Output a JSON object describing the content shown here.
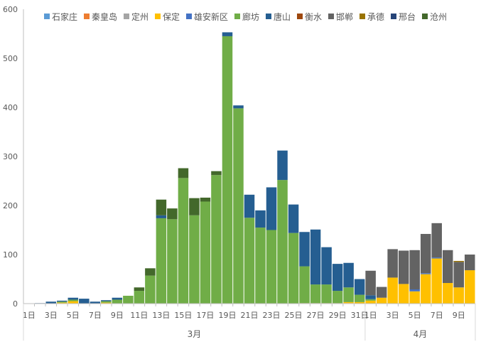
{
  "chart_data": {
    "type": "bar",
    "stacked": true,
    "title": "",
    "xlabel": "",
    "ylabel": "",
    "ylim": [
      0,
      600
    ],
    "yticks": [
      0,
      100,
      200,
      300,
      400,
      500,
      600
    ],
    "grid": false,
    "legend_position": "top",
    "categories": [
      "1日",
      "2日",
      "3日",
      "4日",
      "5日",
      "6日",
      "7日",
      "8日",
      "9日",
      "10日",
      "11日",
      "12日",
      "13日",
      "14日",
      "15日",
      "16日",
      "17日",
      "18日",
      "19日",
      "20日",
      "21日",
      "22日",
      "23日",
      "24日",
      "25日",
      "26日",
      "27日",
      "28日",
      "29日",
      "30日",
      "31日",
      "1日",
      "2日",
      "3日",
      "4日",
      "5日",
      "6日",
      "7日",
      "8日",
      "9日",
      "10日"
    ],
    "shown_tick_labels": [
      "1日",
      "3日",
      "5日",
      "7日",
      "9日",
      "11日",
      "13日",
      "15日",
      "17日",
      "19日",
      "21日",
      "23日",
      "25日",
      "27日",
      "29日",
      "31日",
      "2日",
      "4日",
      "6日",
      "8日",
      "10日"
    ],
    "months": [
      {
        "label": "3月",
        "count": 31
      },
      {
        "label": "4月",
        "count": 10
      }
    ],
    "series": [
      {
        "name": "石家庄",
        "color": "#5B9BD5",
        "values": [
          0,
          0,
          0,
          0,
          0,
          0,
          0,
          0,
          0,
          0,
          0,
          0,
          0,
          0,
          0,
          0,
          0,
          0,
          0,
          0,
          0,
          0,
          0,
          0,
          0,
          0,
          0,
          0,
          0,
          0,
          0,
          0,
          0,
          0,
          0,
          0,
          0,
          0,
          0,
          0,
          0
        ]
      },
      {
        "name": "秦皇岛",
        "color": "#ED7D31",
        "values": [
          0,
          0,
          0,
          0,
          0,
          0,
          0,
          0,
          0,
          0,
          0,
          0,
          0,
          0,
          0,
          0,
          0,
          0,
          0,
          0,
          0,
          0,
          0,
          0,
          0,
          1,
          1,
          1,
          1,
          1,
          0,
          0,
          0,
          0,
          0,
          0,
          0,
          0,
          0,
          0,
          0
        ]
      },
      {
        "name": "定州",
        "color": "#A5A5A5",
        "values": [
          0,
          0,
          0,
          0,
          0,
          0,
          0,
          0,
          0,
          0,
          0,
          0,
          0,
          0,
          0,
          0,
          0,
          0,
          0,
          0,
          0,
          0,
          0,
          0,
          0,
          0,
          0,
          0,
          0,
          0,
          0,
          0,
          0,
          0,
          0,
          0,
          0,
          0,
          0,
          0,
          0
        ]
      },
      {
        "name": "保定",
        "color": "#FFC000",
        "values": [
          0,
          0,
          0,
          2,
          5,
          0,
          0,
          2,
          0,
          0,
          0,
          0,
          0,
          0,
          0,
          0,
          0,
          0,
          0,
          0,
          0,
          0,
          0,
          0,
          0,
          0,
          0,
          0,
          0,
          2,
          3,
          6,
          12,
          53,
          40,
          25,
          60,
          92,
          42,
          33,
          68
        ]
      },
      {
        "name": "雄安新区",
        "color": "#4472C4",
        "values": [
          0,
          0,
          0,
          0,
          0,
          0,
          0,
          0,
          0,
          0,
          0,
          0,
          0,
          0,
          0,
          0,
          0,
          0,
          0,
          0,
          0,
          0,
          0,
          0,
          0,
          0,
          0,
          0,
          0,
          0,
          0,
          0,
          0,
          0,
          0,
          4,
          2,
          2,
          0,
          0,
          0
        ]
      },
      {
        "name": "廊坊",
        "color": "#70AD47",
        "values": [
          0,
          0,
          0,
          2,
          3,
          0,
          0,
          3,
          8,
          16,
          26,
          57,
          174,
          172,
          256,
          180,
          208,
          262,
          545,
          398,
          175,
          155,
          150,
          252,
          144,
          75,
          38,
          38,
          25,
          30,
          15,
          3,
          0,
          0,
          0,
          0,
          0,
          0,
          0,
          0,
          0
        ]
      },
      {
        "name": "唐山",
        "color": "#255E91",
        "values": [
          0,
          1,
          4,
          2,
          4,
          10,
          4,
          2,
          4,
          0,
          0,
          0,
          6,
          0,
          0,
          0,
          0,
          0,
          8,
          6,
          47,
          35,
          87,
          60,
          58,
          70,
          112,
          76,
          55,
          50,
          32,
          8,
          0,
          0,
          0,
          0,
          0,
          0,
          0,
          0,
          0
        ]
      },
      {
        "name": "衡水",
        "color": "#9E480E",
        "values": [
          0,
          0,
          0,
          0,
          0,
          0,
          0,
          0,
          0,
          0,
          0,
          0,
          0,
          0,
          0,
          0,
          0,
          0,
          0,
          0,
          0,
          0,
          0,
          0,
          0,
          0,
          0,
          0,
          0,
          0,
          0,
          0,
          0,
          0,
          0,
          0,
          0,
          0,
          0,
          0,
          0
        ]
      },
      {
        "name": "邯郸",
        "color": "#636363",
        "values": [
          0,
          0,
          0,
          0,
          0,
          0,
          0,
          0,
          0,
          0,
          0,
          0,
          0,
          0,
          0,
          0,
          0,
          0,
          0,
          0,
          0,
          0,
          0,
          0,
          0,
          0,
          0,
          0,
          0,
          0,
          0,
          50,
          22,
          58,
          68,
          80,
          80,
          70,
          67,
          52,
          32
        ]
      },
      {
        "name": "承德",
        "color": "#997300",
        "values": [
          0,
          0,
          0,
          0,
          0,
          0,
          0,
          0,
          0,
          0,
          0,
          0,
          0,
          0,
          0,
          0,
          0,
          0,
          0,
          0,
          0,
          0,
          0,
          0,
          0,
          0,
          0,
          0,
          0,
          0,
          0,
          0,
          0,
          0,
          0,
          0,
          0,
          0,
          0,
          2,
          0
        ]
      },
      {
        "name": "邢台",
        "color": "#264478",
        "values": [
          0,
          0,
          0,
          0,
          0,
          0,
          0,
          0,
          0,
          0,
          0,
          0,
          0,
          0,
          0,
          0,
          0,
          0,
          0,
          0,
          0,
          0,
          0,
          0,
          0,
          0,
          0,
          0,
          0,
          0,
          0,
          0,
          0,
          0,
          0,
          0,
          0,
          0,
          0,
          0,
          0
        ]
      },
      {
        "name": "沧州",
        "color": "#43682B",
        "values": [
          0,
          0,
          0,
          0,
          0,
          0,
          0,
          0,
          0,
          0,
          7,
          15,
          32,
          22,
          20,
          35,
          8,
          8,
          0,
          0,
          0,
          0,
          0,
          0,
          0,
          0,
          0,
          0,
          0,
          0,
          0,
          0,
          0,
          0,
          0,
          0,
          0,
          0,
          0,
          0,
          0
        ]
      }
    ]
  }
}
